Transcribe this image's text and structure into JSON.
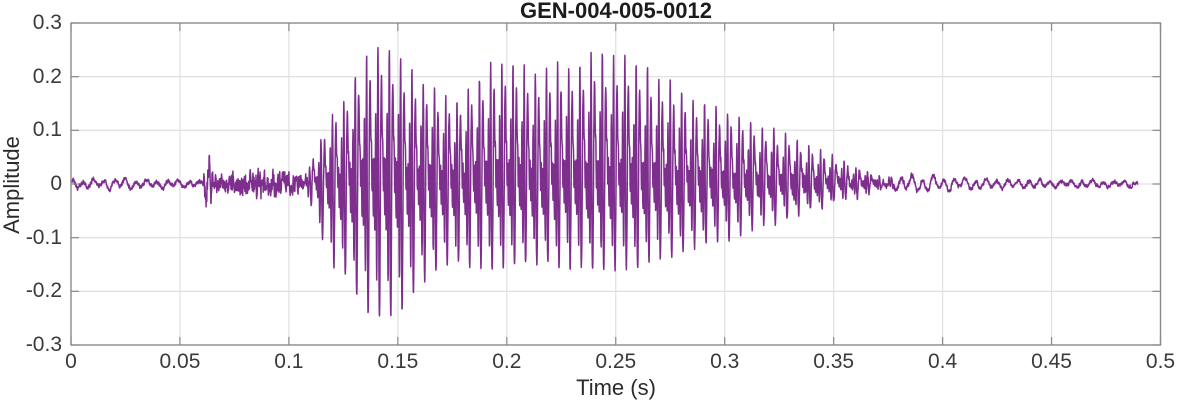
{
  "chart_data": {
    "type": "line",
    "title": "GEN-004-005-0012",
    "xlabel": "Time (s)",
    "ylabel": "Amplitude",
    "xlim": [
      0,
      0.5
    ],
    "ylim": [
      -0.3,
      0.3
    ],
    "xticks": [
      0,
      0.05,
      0.1,
      0.15,
      0.2,
      0.25,
      0.3,
      0.35,
      0.4,
      0.45,
      0.5
    ],
    "xtick_labels": [
      "0",
      "0.05",
      "0.1",
      "0.15",
      "0.2",
      "0.25",
      "0.3",
      "0.35",
      "0.4",
      "0.45",
      "0.5"
    ],
    "yticks": [
      -0.3,
      -0.2,
      -0.1,
      0,
      0.1,
      0.2,
      0.3
    ],
    "ytick_labels": [
      "-0.3",
      "-0.2",
      "-0.1",
      "0",
      "0.1",
      "0.2",
      "0.3"
    ],
    "grid": true,
    "legend": "none",
    "line_color": "#7E2F8E",
    "axis_color": "#8a8a8a",
    "grid_color": "#e2e2e2",
    "label_color": "#3a3a3a",
    "signal": {
      "description": "speech-like waveform: low ripple 0-0.06 s, click at 0.063 s, fricative noise 0.065-0.107 s, voiced segment 0.108-0.38 s peaking near ±0.25, decaying ripple tail to 0.49 s",
      "duration_s": 0.4896,
      "sample_rate_hz": 10000,
      "f0_track": [
        [
          0,
          184
        ],
        [
          0.14,
          192
        ],
        [
          0.22,
          196
        ],
        [
          0.3,
          189
        ],
        [
          0.49,
          176
        ]
      ],
      "harmonic_amps": [
        0.45,
        0.75,
        0.9,
        1.0,
        0.7,
        0.45,
        0.3,
        0.2,
        0.12,
        0.07
      ],
      "phase_chirp": 0.35,
      "voiced_upper_env": [
        [
          0.107,
          0
        ],
        [
          0.111,
          0.05
        ],
        [
          0.115,
          0.09
        ],
        [
          0.12,
          0.13
        ],
        [
          0.126,
          0.155
        ],
        [
          0.131,
          0.21
        ],
        [
          0.136,
          0.245
        ],
        [
          0.141,
          0.255
        ],
        [
          0.147,
          0.25
        ],
        [
          0.152,
          0.235
        ],
        [
          0.158,
          0.205
        ],
        [
          0.164,
          0.185
        ],
        [
          0.17,
          0.168
        ],
        [
          0.176,
          0.162
        ],
        [
          0.182,
          0.175
        ],
        [
          0.188,
          0.2
        ],
        [
          0.194,
          0.225
        ],
        [
          0.2,
          0.23
        ],
        [
          0.206,
          0.222
        ],
        [
          0.212,
          0.21
        ],
        [
          0.218,
          0.215
        ],
        [
          0.224,
          0.225
        ],
        [
          0.23,
          0.22
        ],
        [
          0.236,
          0.235
        ],
        [
          0.242,
          0.25
        ],
        [
          0.248,
          0.235
        ],
        [
          0.254,
          0.24
        ],
        [
          0.26,
          0.225
        ],
        [
          0.266,
          0.21
        ],
        [
          0.272,
          0.2
        ],
        [
          0.278,
          0.185
        ],
        [
          0.284,
          0.165
        ],
        [
          0.29,
          0.155
        ],
        [
          0.296,
          0.145
        ],
        [
          0.302,
          0.135
        ],
        [
          0.308,
          0.125
        ],
        [
          0.314,
          0.115
        ],
        [
          0.32,
          0.105
        ],
        [
          0.326,
          0.092
        ],
        [
          0.332,
          0.08
        ],
        [
          0.338,
          0.07
        ],
        [
          0.344,
          0.06
        ],
        [
          0.35,
          0.05
        ],
        [
          0.356,
          0.04
        ],
        [
          0.362,
          0.03
        ],
        [
          0.368,
          0.02
        ],
        [
          0.374,
          0.01
        ],
        [
          0.38,
          0
        ]
      ],
      "voiced_lower_env": [
        [
          0.107,
          0
        ],
        [
          0.111,
          0.05
        ],
        [
          0.115,
          0.1
        ],
        [
          0.12,
          0.15
        ],
        [
          0.126,
          0.17
        ],
        [
          0.131,
          0.21
        ],
        [
          0.136,
          0.24
        ],
        [
          0.141,
          0.25
        ],
        [
          0.147,
          0.248
        ],
        [
          0.152,
          0.235
        ],
        [
          0.158,
          0.2
        ],
        [
          0.164,
          0.175
        ],
        [
          0.17,
          0.155
        ],
        [
          0.176,
          0.145
        ],
        [
          0.182,
          0.15
        ],
        [
          0.188,
          0.155
        ],
        [
          0.194,
          0.16
        ],
        [
          0.2,
          0.155
        ],
        [
          0.206,
          0.15
        ],
        [
          0.212,
          0.148
        ],
        [
          0.218,
          0.152
        ],
        [
          0.224,
          0.158
        ],
        [
          0.23,
          0.155
        ],
        [
          0.236,
          0.16
        ],
        [
          0.242,
          0.165
        ],
        [
          0.248,
          0.158
        ],
        [
          0.254,
          0.162
        ],
        [
          0.26,
          0.155
        ],
        [
          0.266,
          0.148
        ],
        [
          0.272,
          0.14
        ],
        [
          0.278,
          0.132
        ],
        [
          0.284,
          0.122
        ],
        [
          0.29,
          0.113
        ],
        [
          0.296,
          0.105
        ],
        [
          0.302,
          0.098
        ],
        [
          0.308,
          0.09
        ],
        [
          0.314,
          0.083
        ],
        [
          0.32,
          0.075
        ],
        [
          0.326,
          0.068
        ],
        [
          0.332,
          0.06
        ],
        [
          0.338,
          0.052
        ],
        [
          0.344,
          0.045
        ],
        [
          0.35,
          0.038
        ],
        [
          0.356,
          0.03
        ],
        [
          0.362,
          0.023
        ],
        [
          0.368,
          0.015
        ],
        [
          0.374,
          0.008
        ],
        [
          0.38,
          0
        ]
      ],
      "noise_env": [
        [
          0,
          0.003
        ],
        [
          0.055,
          0.003
        ],
        [
          0.06,
          0.004
        ],
        [
          0.062,
          0.028
        ],
        [
          0.064,
          0.022
        ],
        [
          0.066,
          0.01
        ],
        [
          0.07,
          0.012
        ],
        [
          0.076,
          0.014
        ],
        [
          0.082,
          0.016
        ],
        [
          0.087,
          0.022
        ],
        [
          0.09,
          0.016
        ],
        [
          0.094,
          0.02
        ],
        [
          0.098,
          0.016
        ],
        [
          0.102,
          0.014
        ],
        [
          0.106,
          0.012
        ],
        [
          0.112,
          0.007
        ],
        [
          0.13,
          0.006
        ],
        [
          0.2,
          0.006
        ],
        [
          0.3,
          0.006
        ],
        [
          0.36,
          0.005
        ],
        [
          0.38,
          0.004
        ],
        [
          0.4,
          0.003
        ],
        [
          0.489,
          0.0025
        ]
      ],
      "ripple_env": [
        [
          0,
          0.006
        ],
        [
          0.02,
          0.007
        ],
        [
          0.045,
          0.006
        ],
        [
          0.058,
          0.004
        ],
        [
          0.065,
          0.002
        ],
        [
          0.105,
          0.002
        ],
        [
          0.112,
          0
        ],
        [
          0.37,
          0
        ],
        [
          0.378,
          0.008
        ],
        [
          0.386,
          0.012
        ],
        [
          0.395,
          0.01
        ],
        [
          0.405,
          0.009
        ],
        [
          0.42,
          0.007
        ],
        [
          0.44,
          0.006
        ],
        [
          0.46,
          0.005
        ],
        [
          0.48,
          0.004
        ],
        [
          0.4896,
          0.004
        ]
      ],
      "ripple_freq_hz": 205,
      "clicks": [
        {
          "t": 0.0633,
          "amp": 0.035,
          "freq_hz": 750,
          "decay": 420
        }
      ],
      "noise_seed": 42
    }
  }
}
